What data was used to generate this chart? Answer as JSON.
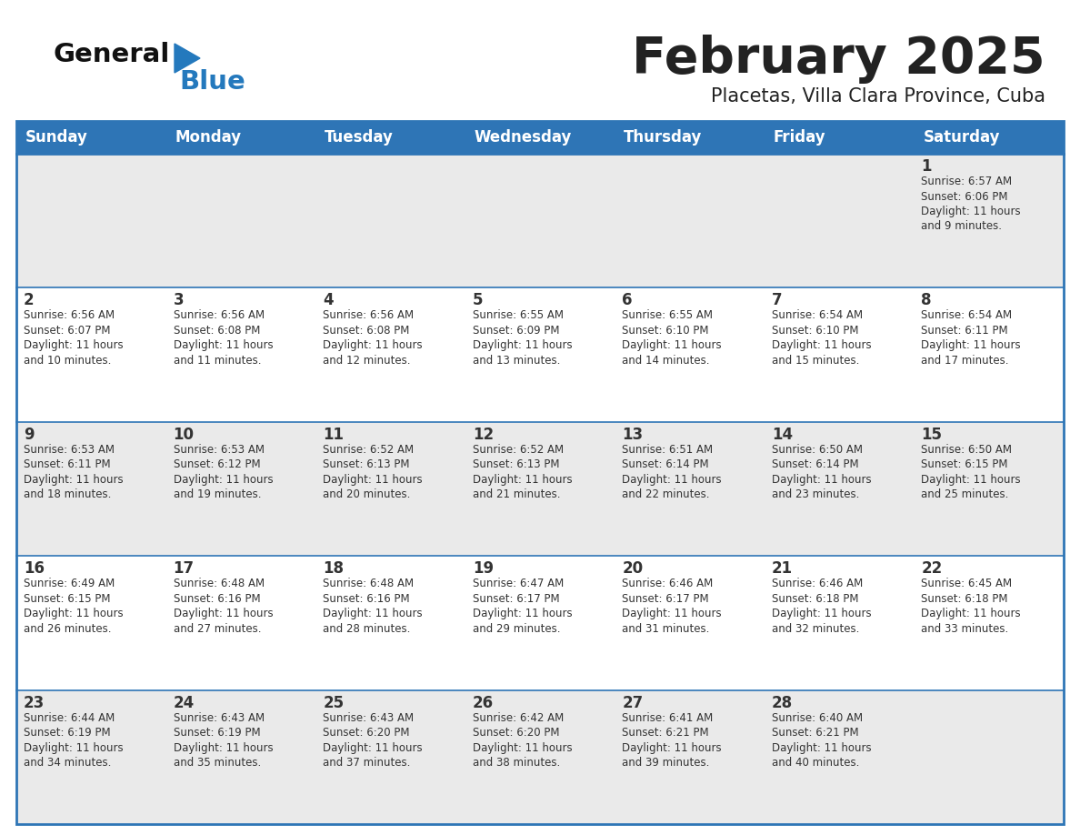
{
  "title": "February 2025",
  "subtitle": "Placetas, Villa Clara Province, Cuba",
  "header_color": "#2E75B6",
  "header_text_color": "#FFFFFF",
  "day_names": [
    "Sunday",
    "Monday",
    "Tuesday",
    "Wednesday",
    "Thursday",
    "Friday",
    "Saturday"
  ],
  "bg_color": "#FFFFFF",
  "cell_bg_light": "#EAEAEA",
  "cell_bg_white": "#FFFFFF",
  "border_color": "#2E75B6",
  "text_color": "#333333",
  "logo_general_color": "#111111",
  "logo_blue_color": "#2479BD",
  "title_color": "#222222",
  "weeks": [
    [
      {
        "day": null,
        "sunrise": null,
        "sunset": null,
        "daylight": null
      },
      {
        "day": null,
        "sunrise": null,
        "sunset": null,
        "daylight": null
      },
      {
        "day": null,
        "sunrise": null,
        "sunset": null,
        "daylight": null
      },
      {
        "day": null,
        "sunrise": null,
        "sunset": null,
        "daylight": null
      },
      {
        "day": null,
        "sunrise": null,
        "sunset": null,
        "daylight": null
      },
      {
        "day": null,
        "sunrise": null,
        "sunset": null,
        "daylight": null
      },
      {
        "day": 1,
        "sunrise": "6:57 AM",
        "sunset": "6:06 PM",
        "daylight": "11 hours and 9 minutes"
      }
    ],
    [
      {
        "day": 2,
        "sunrise": "6:56 AM",
        "sunset": "6:07 PM",
        "daylight": "11 hours and 10 minutes"
      },
      {
        "day": 3,
        "sunrise": "6:56 AM",
        "sunset": "6:08 PM",
        "daylight": "11 hours and 11 minutes"
      },
      {
        "day": 4,
        "sunrise": "6:56 AM",
        "sunset": "6:08 PM",
        "daylight": "11 hours and 12 minutes"
      },
      {
        "day": 5,
        "sunrise": "6:55 AM",
        "sunset": "6:09 PM",
        "daylight": "11 hours and 13 minutes"
      },
      {
        "day": 6,
        "sunrise": "6:55 AM",
        "sunset": "6:10 PM",
        "daylight": "11 hours and 14 minutes"
      },
      {
        "day": 7,
        "sunrise": "6:54 AM",
        "sunset": "6:10 PM",
        "daylight": "11 hours and 15 minutes"
      },
      {
        "day": 8,
        "sunrise": "6:54 AM",
        "sunset": "6:11 PM",
        "daylight": "11 hours and 17 minutes"
      }
    ],
    [
      {
        "day": 9,
        "sunrise": "6:53 AM",
        "sunset": "6:11 PM",
        "daylight": "11 hours and 18 minutes"
      },
      {
        "day": 10,
        "sunrise": "6:53 AM",
        "sunset": "6:12 PM",
        "daylight": "11 hours and 19 minutes"
      },
      {
        "day": 11,
        "sunrise": "6:52 AM",
        "sunset": "6:13 PM",
        "daylight": "11 hours and 20 minutes"
      },
      {
        "day": 12,
        "sunrise": "6:52 AM",
        "sunset": "6:13 PM",
        "daylight": "11 hours and 21 minutes"
      },
      {
        "day": 13,
        "sunrise": "6:51 AM",
        "sunset": "6:14 PM",
        "daylight": "11 hours and 22 minutes"
      },
      {
        "day": 14,
        "sunrise": "6:50 AM",
        "sunset": "6:14 PM",
        "daylight": "11 hours and 23 minutes"
      },
      {
        "day": 15,
        "sunrise": "6:50 AM",
        "sunset": "6:15 PM",
        "daylight": "11 hours and 25 minutes"
      }
    ],
    [
      {
        "day": 16,
        "sunrise": "6:49 AM",
        "sunset": "6:15 PM",
        "daylight": "11 hours and 26 minutes"
      },
      {
        "day": 17,
        "sunrise": "6:48 AM",
        "sunset": "6:16 PM",
        "daylight": "11 hours and 27 minutes"
      },
      {
        "day": 18,
        "sunrise": "6:48 AM",
        "sunset": "6:16 PM",
        "daylight": "11 hours and 28 minutes"
      },
      {
        "day": 19,
        "sunrise": "6:47 AM",
        "sunset": "6:17 PM",
        "daylight": "11 hours and 29 minutes"
      },
      {
        "day": 20,
        "sunrise": "6:46 AM",
        "sunset": "6:17 PM",
        "daylight": "11 hours and 31 minutes"
      },
      {
        "day": 21,
        "sunrise": "6:46 AM",
        "sunset": "6:18 PM",
        "daylight": "11 hours and 32 minutes"
      },
      {
        "day": 22,
        "sunrise": "6:45 AM",
        "sunset": "6:18 PM",
        "daylight": "11 hours and 33 minutes"
      }
    ],
    [
      {
        "day": 23,
        "sunrise": "6:44 AM",
        "sunset": "6:19 PM",
        "daylight": "11 hours and 34 minutes"
      },
      {
        "day": 24,
        "sunrise": "6:43 AM",
        "sunset": "6:19 PM",
        "daylight": "11 hours and 35 minutes"
      },
      {
        "day": 25,
        "sunrise": "6:43 AM",
        "sunset": "6:20 PM",
        "daylight": "11 hours and 37 minutes"
      },
      {
        "day": 26,
        "sunrise": "6:42 AM",
        "sunset": "6:20 PM",
        "daylight": "11 hours and 38 minutes"
      },
      {
        "day": 27,
        "sunrise": "6:41 AM",
        "sunset": "6:21 PM",
        "daylight": "11 hours and 39 minutes"
      },
      {
        "day": 28,
        "sunrise": "6:40 AM",
        "sunset": "6:21 PM",
        "daylight": "11 hours and 40 minutes"
      },
      {
        "day": null,
        "sunrise": null,
        "sunset": null,
        "daylight": null
      }
    ]
  ]
}
